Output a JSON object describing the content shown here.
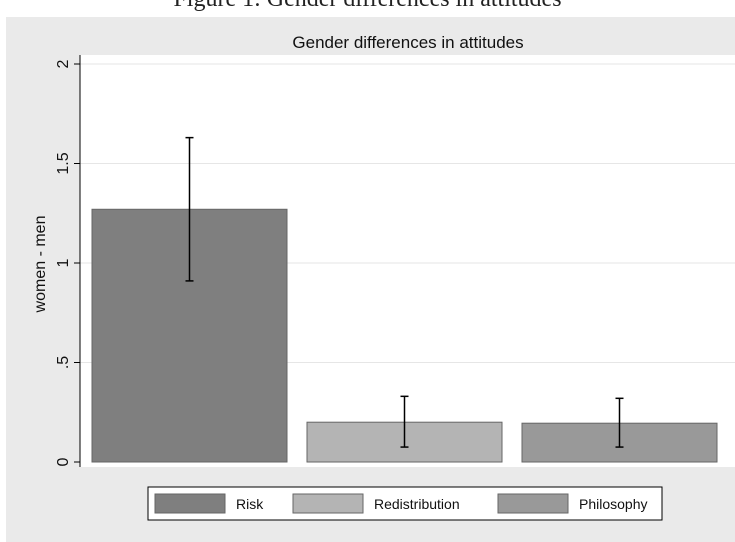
{
  "figure_caption": "Figure 1: Gender differences in attitudes",
  "chart_data": {
    "type": "bar",
    "title": "Gender differences in attitudes",
    "xlabel": "",
    "ylabel": "women - men",
    "ylim": [
      0,
      2
    ],
    "yticks": [
      0,
      0.5,
      1,
      1.5,
      2
    ],
    "ytick_labels": [
      "0",
      ".5",
      "1",
      "1.5",
      "2"
    ],
    "grid": true,
    "legend_position": "bottom",
    "categories": [
      "Risk",
      "Redistribution",
      "Philosophy"
    ],
    "values": [
      1.27,
      0.2,
      0.195
    ],
    "error_low": [
      0.91,
      0.075,
      0.075
    ],
    "error_high": [
      1.63,
      0.33,
      0.32
    ],
    "colors": [
      "#7f7f7f",
      "#b4b4b4",
      "#999999"
    ]
  }
}
